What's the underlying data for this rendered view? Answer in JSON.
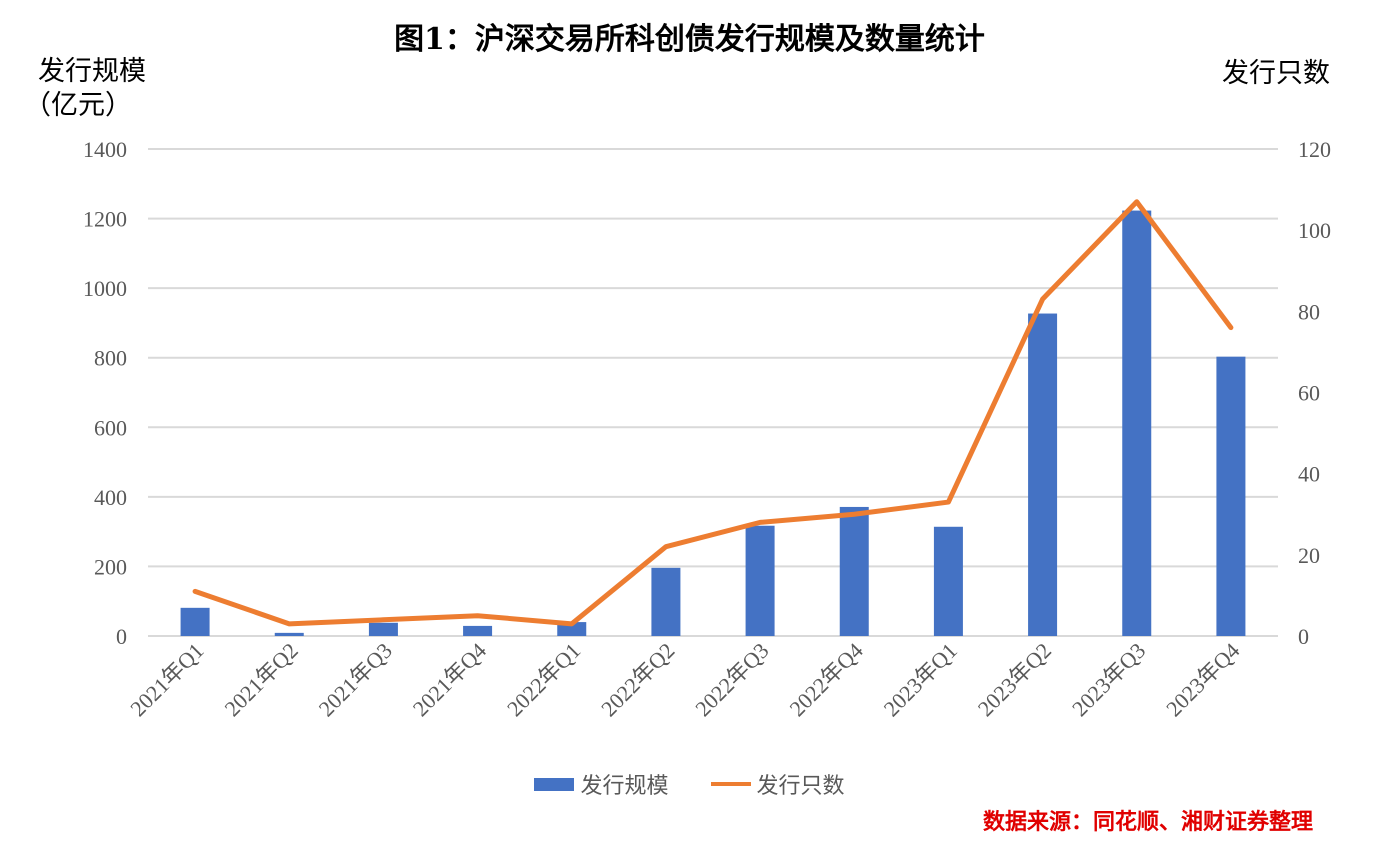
{
  "title": "图1：沪深交易所科创债发行规模及数量统计",
  "left_axis_label": [
    "发行规模",
    "（亿元）"
  ],
  "right_axis_label": "发行只数",
  "source": "数据来源：同花顺、湘财证券整理",
  "chart_data": {
    "type": "bar+line",
    "title": "图1：沪深交易所科创债发行规模及数量统计",
    "categories": [
      "2021年Q1",
      "2021年Q2",
      "2021年Q3",
      "2021年Q4",
      "2022年Q1",
      "2022年Q2",
      "2022年Q3",
      "2022年Q4",
      "2023年Q1",
      "2023年Q2",
      "2023年Q3",
      "2023年Q4"
    ],
    "series": [
      {
        "name": "发行规模",
        "type": "bar",
        "axis": "left",
        "color": "#4472C4",
        "values": [
          81,
          9,
          38,
          29,
          40,
          196,
          317,
          371,
          314,
          927,
          1223,
          803
        ]
      },
      {
        "name": "发行只数",
        "type": "line",
        "axis": "right",
        "color": "#ED7D31",
        "values": [
          11,
          3,
          4,
          5,
          3,
          22,
          28,
          30,
          33,
          83,
          107,
          76
        ]
      }
    ],
    "ylim_left": [
      0,
      1400
    ],
    "yticks_left": [
      0,
      200,
      400,
      600,
      800,
      1000,
      1200,
      1400
    ],
    "ylim_right": [
      0,
      120
    ],
    "yticks_right": [
      0,
      20,
      40,
      60,
      80,
      100,
      120
    ],
    "ylabel_left": "发行规模（亿元）",
    "ylabel_right": "发行只数",
    "grid": true,
    "legend": "bottom"
  }
}
